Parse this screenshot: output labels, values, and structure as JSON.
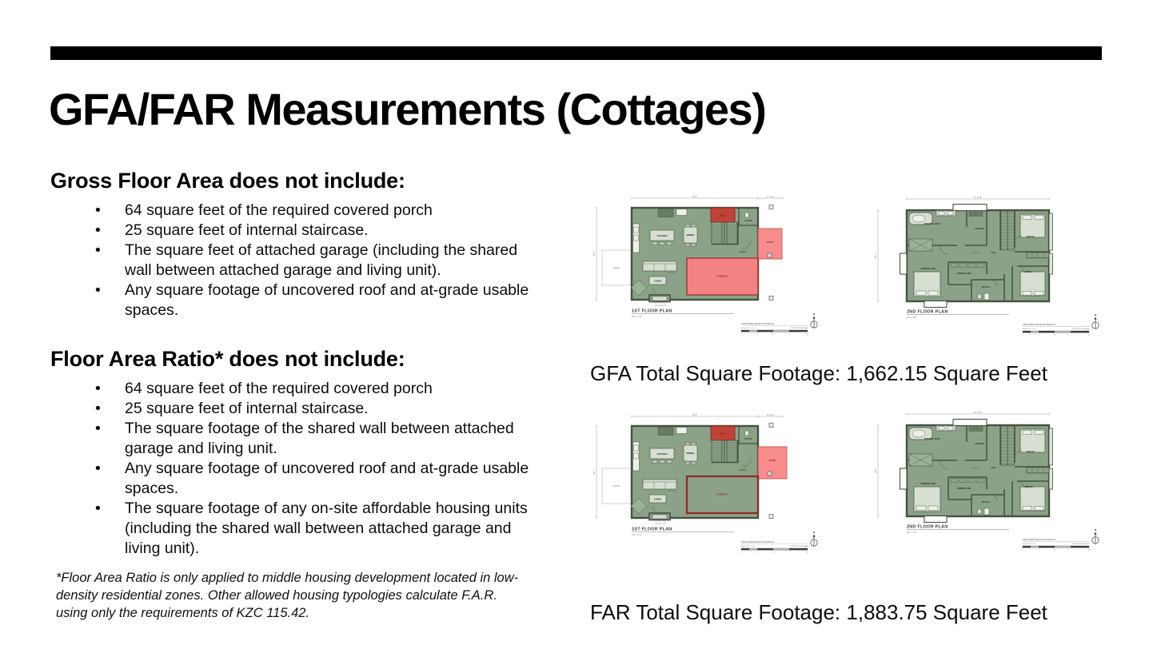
{
  "slide": {
    "title": "GFA/FAR Measurements (Cottages)",
    "sections": [
      {
        "heading": "Gross Floor Area does not include:",
        "bullets": [
          "64 square feet of the required covered porch",
          "25 square feet of internal staircase.",
          "The square feet of attached garage (including the shared wall between attached garage and living unit).",
          "Any square footage of uncovered roof and at-grade usable spaces."
        ]
      },
      {
        "heading": "Floor Area Ratio* does not include:",
        "bullets": [
          "64 square feet of the required covered porch",
          "25 square feet of internal staircase.",
          "The square footage of the shared wall between attached garage and living unit.",
          "Any square footage of uncovered roof and at-grade usable spaces.",
          "The square footage of any on-site affordable housing units (including the shared wall between attached garage and living unit)."
        ]
      }
    ],
    "footnote": "*Floor Area Ratio is only applied to middle housing development located in low-density residential zones. Other allowed housing typologies calculate F.A.R. using only the requirements of KZC 115.42.",
    "captions": {
      "gfa": "GFA Total Square Footage: 1,662.15 Square Feet",
      "far": "FAR Total Square Footage: 1,883.75 Square Feet"
    }
  },
  "plans": {
    "first_floor": {
      "name": "1ST FLOOR PLAN",
      "scale": "1/4\" = 1'-0\"",
      "rooms": {
        "kitchen": "KITCHEN",
        "dining": "DINING",
        "living": "LIVING",
        "entry": "ENTRY",
        "powder": "POWDER",
        "porch": "PORCH",
        "garage": "GARAGE",
        "patio_left": "PATIO",
        "patio_right": "PATIO",
        "area": "675.78 sf"
      },
      "dims": {
        "top": "36'-6\"",
        "right": "11'-6 3/4\"",
        "side": "38'-4\""
      }
    },
    "second_floor": {
      "name": "2ND FLOOR PLAN",
      "scale": "1/4\" = 1'-0\"",
      "rooms": {
        "primary_bath": "PRIMARY BATH",
        "laundry": "LAUNDRY",
        "bed2": "BED 02",
        "primary_bed": "PRIMARY BED",
        "primary_wic": "PRIMARY WIC",
        "hall": "HALL",
        "bath1": "BATH 01",
        "bed1": "BED 01",
        "area": "1,016.37 sf"
      },
      "dims": {
        "top": "57'-8 7/8\"",
        "side": "38'-1\""
      }
    },
    "title_block": {
      "project": "13635 103RD AVE NE COTTAGES #2",
      "scale": "Scale: 1/4\" = 1'-0\"",
      "stamp": "7/18/2023 11:46:04 AM",
      "scale_ticks": [
        "0",
        "8",
        "16",
        "32"
      ]
    },
    "north_label": "N"
  },
  "colors": {
    "accent_bar": "#000000",
    "plan_green": "#8ba289",
    "plan_wall": "#44533f",
    "plan_red_fill": "#f58282",
    "plan_red_dark": "#bf4338",
    "plan_red_border": "#8f2b22",
    "furniture": "#d7dfd2"
  }
}
